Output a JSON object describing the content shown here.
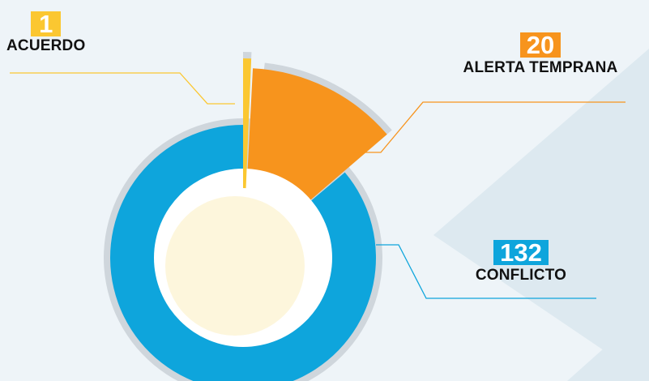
{
  "chart_data": {
    "type": "pie",
    "style": "donut",
    "categories": [
      "ACUERDO",
      "ALERTA TEMPRANA",
      "CONFLICTO"
    ],
    "values": [
      1,
      20,
      132
    ],
    "colors": [
      "#fbc731",
      "#f7941d",
      "#0ea5dc"
    ],
    "label_colors": [
      "#fbc731",
      "#f7941d",
      "#0ea5dc"
    ],
    "title": "",
    "legend": "callouts",
    "start": "top",
    "direction": "clockwise"
  },
  "colors": {
    "background": "#eef4f8",
    "shadow_ring": "#cfd6dc",
    "hole_ring": "#ffffff",
    "center": "#fdf6dc",
    "background_shape": "#dde9f0"
  }
}
